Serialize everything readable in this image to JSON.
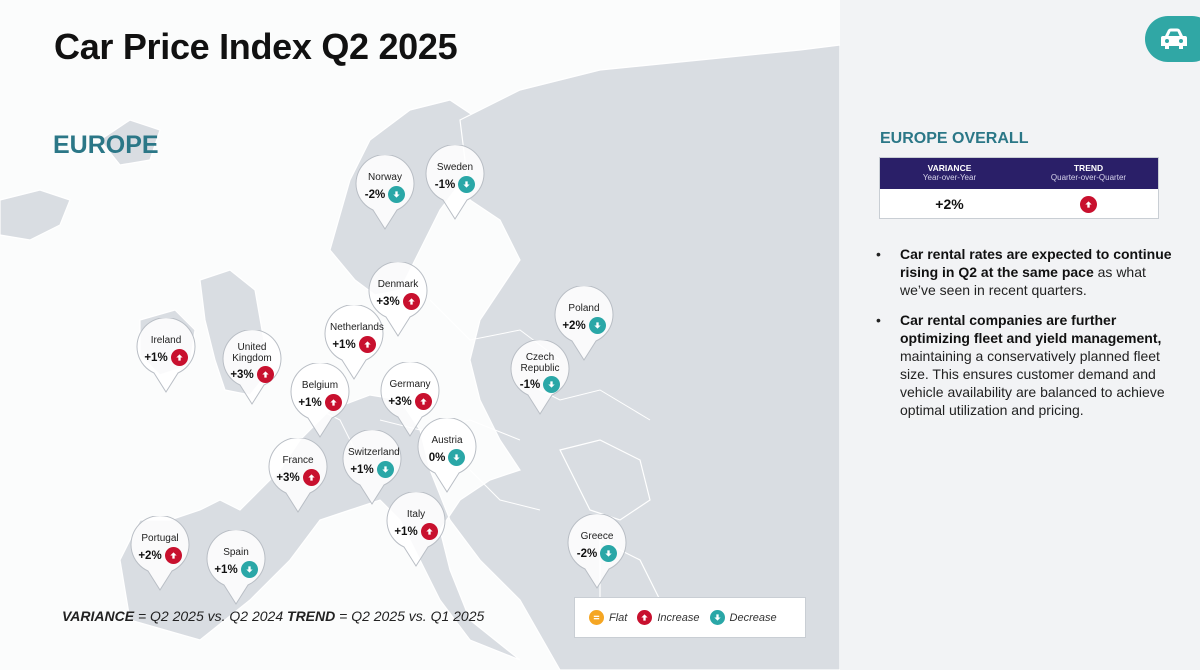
{
  "title": "Car Price Index Q2 2025",
  "region": "EUROPE",
  "colors": {
    "increase": "#c8102e",
    "decrease": "#2aa7a7",
    "flat": "#f5a623",
    "accent_teal": "#2b7787",
    "table_header": "#2a1f68"
  },
  "countries": [
    {
      "name": "Norway",
      "value": "-2%",
      "trend": "down"
    },
    {
      "name": "Sweden",
      "value": "-1%",
      "trend": "down"
    },
    {
      "name": "Denmark",
      "value": "+3%",
      "trend": "up"
    },
    {
      "name": "Poland",
      "value": "+2%",
      "trend": "down"
    },
    {
      "name": "Ireland",
      "value": "+1%",
      "trend": "up"
    },
    {
      "name": "United Kingdom",
      "value": "+3%",
      "trend": "up"
    },
    {
      "name": "Netherlands",
      "value": "+1%",
      "trend": "up"
    },
    {
      "name": "Czech Republic",
      "value": "-1%",
      "trend": "down"
    },
    {
      "name": "Belgium",
      "value": "+1%",
      "trend": "up"
    },
    {
      "name": "Germany",
      "value": "+3%",
      "trend": "up"
    },
    {
      "name": "Austria",
      "value": "0%",
      "trend": "down"
    },
    {
      "name": "France",
      "value": "+3%",
      "trend": "up"
    },
    {
      "name": "Switzerland",
      "value": "+1%",
      "trend": "down"
    },
    {
      "name": "Italy",
      "value": "+1%",
      "trend": "up"
    },
    {
      "name": "Portugal",
      "value": "+2%",
      "trend": "up"
    },
    {
      "name": "Spain",
      "value": "+1%",
      "trend": "down"
    },
    {
      "name": "Greece",
      "value": "-2%",
      "trend": "down"
    }
  ],
  "footnote": {
    "variance_label": "VARIANCE",
    "variance_text": " = Q2 2025 vs. Q2 2024  ",
    "trend_label": "TREND",
    "trend_text": " = Q2 2025 vs. Q1 2025"
  },
  "legend": {
    "flat": "Flat",
    "increase": "Increase",
    "decrease": "Decrease"
  },
  "overall": {
    "title": "EUROPE OVERALL",
    "variance_header": "VARIANCE",
    "variance_sub": "Year-over-Year",
    "trend_header": "TREND",
    "trend_sub": "Quarter-over-Quarter",
    "variance_value": "+2%",
    "trend": "up"
  },
  "bullets": [
    {
      "bold": "Car rental rates are expected to continue rising in Q2 at the same pace",
      "text": " as what we’ve seen in recent quarters."
    },
    {
      "bold": "Car rental companies are further optimizing fleet and yield management,",
      "text": " maintaining a conservatively planned fleet size. This ensures customer demand and vehicle availability are balanced to achieve optimal utilization and pricing."
    }
  ],
  "icons": {
    "car_badge": "car-icon",
    "increase": "arrow-up-icon",
    "decrease": "arrow-down-icon",
    "flat": "equals-icon"
  }
}
